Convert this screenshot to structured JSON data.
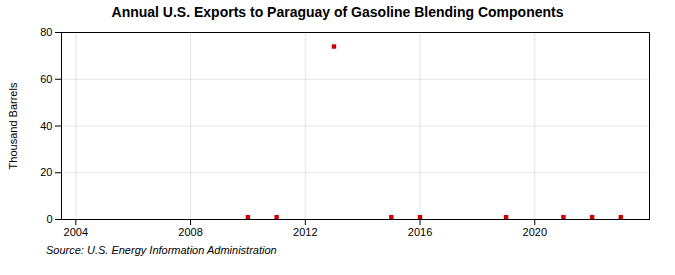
{
  "chart_data": {
    "type": "scatter",
    "title": "Annual U.S. Exports to Paraguay of Gasoline Blending Components",
    "ylabel": "Thousand Barrels",
    "source": "Source: U.S. Energy Information Administration",
    "x": [
      2010,
      2011,
      2013,
      2015,
      2016,
      2019,
      2021,
      2022,
      2023
    ],
    "values": [
      1,
      1,
      74,
      1,
      1,
      1,
      1,
      1,
      1
    ],
    "color": "#cc0000",
    "marker": "square",
    "xlim": [
      2003.5,
      2024
    ],
    "ylim": [
      0,
      80
    ],
    "xticks": [
      2004,
      2008,
      2012,
      2016,
      2020
    ],
    "yticks": [
      0,
      20,
      40,
      60,
      80
    ],
    "grid": true
  }
}
